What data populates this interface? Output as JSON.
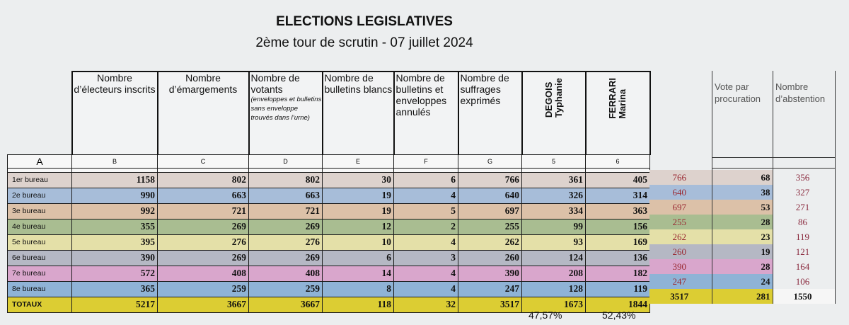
{
  "title": "ELECTIONS LEGISLATIVES",
  "subtitle": "2ème tour de scrutin - 07 juillet 2024",
  "headers": {
    "electeurs": "Nombre d’électeurs inscrits",
    "emargements": "Nombre d’émargements",
    "votants": "Nombre de votants",
    "votants_note": "(enveloppes et bulletins sans enveloppe trouvés dans l’urne)",
    "blancs": "Nombre de bulletins blancs",
    "annules": "Nombre de bulletins et enveloppes annulés",
    "exprimes": "Nombre de suffrages exprimés",
    "cand1_name": "DEGOIS",
    "cand1_first": "Typhanie",
    "cand2_name": "FERRARI",
    "cand2_first": "Marina",
    "procuration": "Vote par procuration",
    "abstention": "Nombre d’abstention"
  },
  "letters": [
    "A",
    "B",
    "C",
    "D",
    "E",
    "F",
    "G",
    "5",
    "6"
  ],
  "rows": [
    {
      "label": "1er bureau",
      "color": "#ddd2cd",
      "vals": [
        "1158",
        "802",
        "802",
        "30",
        "6",
        "766",
        "361",
        "405"
      ],
      "extra": [
        "766",
        "68",
        "356"
      ]
    },
    {
      "label": "2e bureau",
      "color": "#a7bdd9",
      "vals": [
        "990",
        "663",
        "663",
        "19",
        "4",
        "640",
        "326",
        "314"
      ],
      "extra": [
        "640",
        "38",
        "327"
      ]
    },
    {
      "label": "3e bureau",
      "color": "#dcc1a8",
      "vals": [
        "992",
        "721",
        "721",
        "19",
        "5",
        "697",
        "334",
        "363"
      ],
      "extra": [
        "697",
        "53",
        "271"
      ]
    },
    {
      "label": "4e bureau",
      "color": "#a9bd91",
      "vals": [
        "355",
        "269",
        "269",
        "12",
        "2",
        "255",
        "99",
        "156"
      ],
      "extra": [
        "255",
        "28",
        "86"
      ]
    },
    {
      "label": "5e bureau",
      "color": "#e4e0a8",
      "vals": [
        "395",
        "276",
        "276",
        "10",
        "4",
        "262",
        "93",
        "169"
      ],
      "extra": [
        "262",
        "23",
        "119"
      ]
    },
    {
      "label": "6e bureau",
      "color": "#b5b8c4",
      "vals": [
        "390",
        "269",
        "269",
        "6",
        "3",
        "260",
        "124",
        "136"
      ],
      "extra": [
        "260",
        "19",
        "121"
      ]
    },
    {
      "label": "7e bureau",
      "color": "#d9a6cc",
      "vals": [
        "572",
        "408",
        "408",
        "14",
        "4",
        "390",
        "208",
        "182"
      ],
      "extra": [
        "390",
        "28",
        "164"
      ]
    },
    {
      "label": "8e bureau",
      "color": "#8fb3d6",
      "vals": [
        "365",
        "259",
        "259",
        "8",
        "4",
        "247",
        "128",
        "119"
      ],
      "extra": [
        "247",
        "24",
        "106"
      ]
    }
  ],
  "totals": {
    "label": "TOTAUX",
    "color": "#dccd33",
    "vals": [
      "5217",
      "3667",
      "3667",
      "118",
      "32",
      "3517",
      "1673",
      "1844"
    ],
    "extra": [
      "3517",
      "281",
      "1550"
    ]
  },
  "percent": {
    "cand1": "47,57%",
    "cand2": "52,43%"
  }
}
